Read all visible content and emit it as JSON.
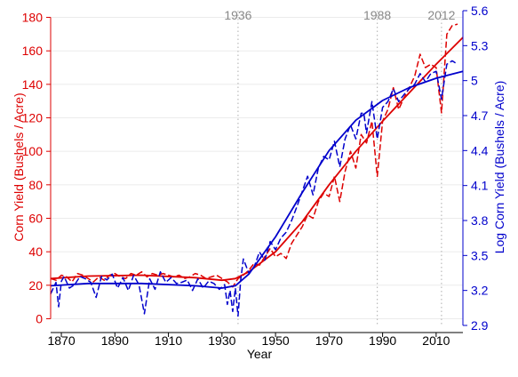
{
  "chart_data": {
    "type": "line",
    "xlabel": "Year",
    "ylabel_left": "Corn Yield (Bushels / Acre)",
    "ylabel_right": "Log Corn Yield (Bushels / Acre)",
    "xlim": [
      1866,
      2020
    ],
    "ylim_left": [
      -4,
      184
    ],
    "ylim_right": [
      2.9,
      5.6
    ],
    "x_ticks": [
      1870,
      1890,
      1910,
      1930,
      1950,
      1970,
      1990,
      2010
    ],
    "y_left_ticks": [
      0,
      20,
      40,
      60,
      80,
      100,
      120,
      140,
      160,
      180
    ],
    "y_right_ticks": [
      2.9,
      3.2,
      3.5,
      3.8,
      4.1,
      4.4,
      4.7,
      5,
      5.3,
      5.6
    ],
    "annotations": [
      {
        "label": "1936",
        "x": 1936
      },
      {
        "label": "1988",
        "x": 1988
      },
      {
        "label": "2012",
        "x": 2012
      }
    ],
    "colors": {
      "left": "#dd0000",
      "right": "#0000cc",
      "grid": "#ebebeb",
      "vline": "#bbbbbb",
      "annotation": "#888888"
    },
    "grid": true,
    "series": [
      {
        "axis": "left",
        "style": "dashed",
        "x": [
          1866,
          1868,
          1870,
          1872,
          1874,
          1876,
          1878,
          1880,
          1882,
          1884,
          1886,
          1888,
          1890,
          1892,
          1894,
          1896,
          1898,
          1900,
          1902,
          1904,
          1906,
          1908,
          1910,
          1912,
          1914,
          1916,
          1918,
          1920,
          1922,
          1924,
          1926,
          1928,
          1930,
          1932,
          1934,
          1936,
          1938,
          1940,
          1942,
          1944,
          1946,
          1948,
          1950,
          1952,
          1954,
          1956,
          1958,
          1960,
          1962,
          1964,
          1966,
          1968,
          1970,
          1972,
          1974,
          1976,
          1978,
          1980,
          1982,
          1984,
          1986,
          1988,
          1990,
          1992,
          1994,
          1996,
          1998,
          2000,
          2002,
          2004,
          2006,
          2008,
          2010,
          2012,
          2014,
          2016,
          2018
        ],
        "values": [
          24,
          23,
          26,
          25,
          22,
          27,
          26,
          24,
          22,
          25,
          23,
          26,
          27,
          25,
          24,
          27,
          26,
          28,
          25,
          27,
          26,
          27,
          26,
          25,
          26,
          24,
          25,
          27,
          26,
          24,
          25,
          26,
          24,
          22,
          19,
          24,
          26,
          29,
          33,
          32,
          37,
          42,
          37,
          39,
          36,
          45,
          50,
          55,
          62,
          60,
          70,
          75,
          73,
          85,
          70,
          88,
          100,
          90,
          110,
          105,
          118,
          85,
          118,
          125,
          138,
          125,
          132,
          138,
          145,
          158,
          150,
          152,
          150,
          123,
          170,
          175,
          176
        ]
      },
      {
        "axis": "left",
        "style": "solid",
        "x": [
          1866,
          1880,
          1900,
          1920,
          1930,
          1935,
          1940,
          1950,
          1960,
          1970,
          1980,
          1990,
          2000,
          2010,
          2020
        ],
        "values": [
          24,
          25.5,
          26,
          24.5,
          23,
          24,
          28,
          40,
          58,
          80,
          100,
          118,
          135,
          152,
          168
        ]
      },
      {
        "axis": "right",
        "style": "dashed",
        "x": [
          1866,
          1868,
          1869,
          1870,
          1871,
          1873,
          1875,
          1877,
          1879,
          1881,
          1883,
          1885,
          1887,
          1889,
          1891,
          1893,
          1895,
          1897,
          1899,
          1901,
          1903,
          1905,
          1907,
          1909,
          1911,
          1913,
          1915,
          1917,
          1919,
          1921,
          1923,
          1925,
          1927,
          1929,
          1931,
          1932,
          1933,
          1934,
          1935,
          1936,
          1937,
          1938,
          1940,
          1942,
          1944,
          1946,
          1948,
          1950,
          1952,
          1954,
          1956,
          1958,
          1960,
          1962,
          1964,
          1966,
          1968,
          1970,
          1972,
          1974,
          1976,
          1978,
          1980,
          1982,
          1983,
          1984,
          1986,
          1988,
          1990,
          1992,
          1994,
          1996,
          1998,
          2000,
          2002,
          2004,
          2006,
          2008,
          2010,
          2012,
          2014,
          2016,
          2018
        ],
        "values": [
          3.17,
          3.27,
          3.06,
          3.28,
          3.32,
          3.22,
          3.25,
          3.32,
          3.3,
          3.27,
          3.14,
          3.32,
          3.29,
          3.34,
          3.22,
          3.31,
          3.2,
          3.33,
          3.25,
          3.0,
          3.3,
          3.21,
          3.36,
          3.27,
          3.31,
          3.26,
          3.27,
          3.29,
          3.2,
          3.3,
          3.22,
          3.28,
          3.26,
          3.21,
          3.25,
          3.08,
          3.2,
          3.02,
          3.22,
          2.98,
          3.29,
          3.47,
          3.35,
          3.4,
          3.53,
          3.46,
          3.62,
          3.55,
          3.65,
          3.7,
          3.8,
          3.92,
          4.05,
          4.18,
          4.02,
          4.25,
          4.35,
          4.32,
          4.48,
          4.26,
          4.5,
          4.62,
          4.5,
          4.72,
          4.72,
          4.55,
          4.82,
          4.5,
          4.77,
          4.82,
          4.93,
          4.82,
          4.88,
          4.93,
          4.97,
          5.06,
          4.99,
          5.06,
          5.08,
          4.84,
          5.14,
          5.17,
          5.14
        ]
      },
      {
        "axis": "right",
        "style": "solid",
        "x": [
          1866,
          1880,
          1900,
          1920,
          1930,
          1935,
          1940,
          1950,
          1960,
          1970,
          1980,
          1990,
          2000,
          2010,
          2020
        ],
        "values": [
          3.24,
          3.26,
          3.26,
          3.24,
          3.22,
          3.24,
          3.34,
          3.66,
          4.04,
          4.4,
          4.66,
          4.83,
          4.94,
          5.02,
          5.08
        ]
      }
    ]
  }
}
